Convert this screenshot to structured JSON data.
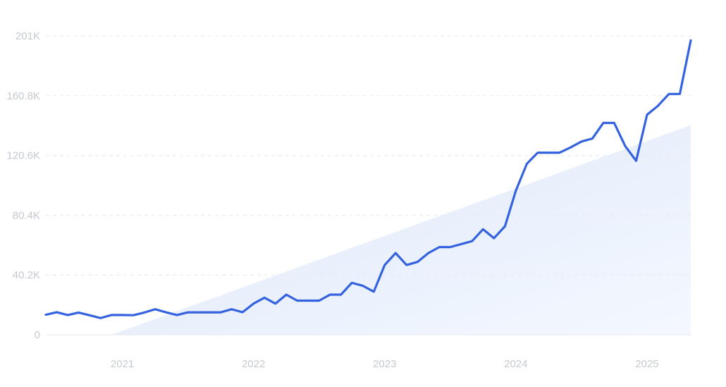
{
  "chart_data": {
    "type": "line",
    "title": "",
    "xlabel": "",
    "ylabel": "",
    "ylim": [
      0,
      201000
    ],
    "xlim": [
      "2020-06",
      "2025-05"
    ],
    "grid": true,
    "legend": "none",
    "y_ticks": [
      {
        "value": 0,
        "label": "0"
      },
      {
        "value": 40200,
        "label": "40.2K"
      },
      {
        "value": 80400,
        "label": "80.4K"
      },
      {
        "value": 120600,
        "label": "120.6K"
      },
      {
        "value": 160800,
        "label": "160.8K"
      },
      {
        "value": 201000,
        "label": "201K"
      }
    ],
    "x_ticks": [
      {
        "value": "2021-01",
        "label": "2021"
      },
      {
        "value": "2022-01",
        "label": "2022"
      },
      {
        "value": "2023-01",
        "label": "2023"
      },
      {
        "value": "2024-01",
        "label": "2024"
      },
      {
        "value": "2025-01",
        "label": "2025"
      }
    ],
    "colors": {
      "line": "#3563e0",
      "trend_fill": "#e8f0fd",
      "grid": "#e6e9ef",
      "tick_text": "#c5c9d1"
    },
    "trend": {
      "x": [
        "2020-12",
        "2025-05"
      ],
      "y": [
        0,
        141000
      ]
    },
    "series": [
      {
        "x": [
          "2020-06",
          "2020-07",
          "2020-08",
          "2020-09",
          "2020-10",
          "2020-11",
          "2020-12",
          "2021-01",
          "2021-02",
          "2021-03",
          "2021-04",
          "2021-05",
          "2021-06",
          "2021-07",
          "2021-08",
          "2021-09",
          "2021-10",
          "2021-11",
          "2021-12",
          "2022-01",
          "2022-02",
          "2022-03",
          "2022-04",
          "2022-05",
          "2022-06",
          "2022-07",
          "2022-08",
          "2022-09",
          "2022-10",
          "2022-11",
          "2022-12",
          "2023-01",
          "2023-02",
          "2023-03",
          "2023-04",
          "2023-05",
          "2023-06",
          "2023-07",
          "2023-08",
          "2023-09",
          "2023-10",
          "2023-11",
          "2023-12",
          "2024-01",
          "2024-02",
          "2024-03",
          "2024-04",
          "2024-05",
          "2024-06",
          "2024-07",
          "2024-08",
          "2024-09",
          "2024-10",
          "2024-11",
          "2024-12",
          "2025-01",
          "2025-02",
          "2025-03",
          "2025-04",
          "2025-05"
        ],
        "y": [
          13500,
          15200,
          13300,
          15000,
          13200,
          11300,
          13300,
          13300,
          13200,
          15000,
          17200,
          15100,
          13300,
          15100,
          15100,
          15100,
          15100,
          17200,
          15200,
          21000,
          25000,
          21000,
          27000,
          23000,
          23000,
          23000,
          27000,
          27000,
          35000,
          33000,
          29000,
          47000,
          55000,
          47000,
          49000,
          55000,
          59000,
          59000,
          61000,
          63000,
          71000,
          65000,
          73000,
          97000,
          115000,
          122500,
          122500,
          122500,
          126000,
          130000,
          132000,
          142500,
          142500,
          127000,
          117000,
          148000,
          154000,
          162000,
          162000,
          198000
        ]
      }
    ]
  }
}
